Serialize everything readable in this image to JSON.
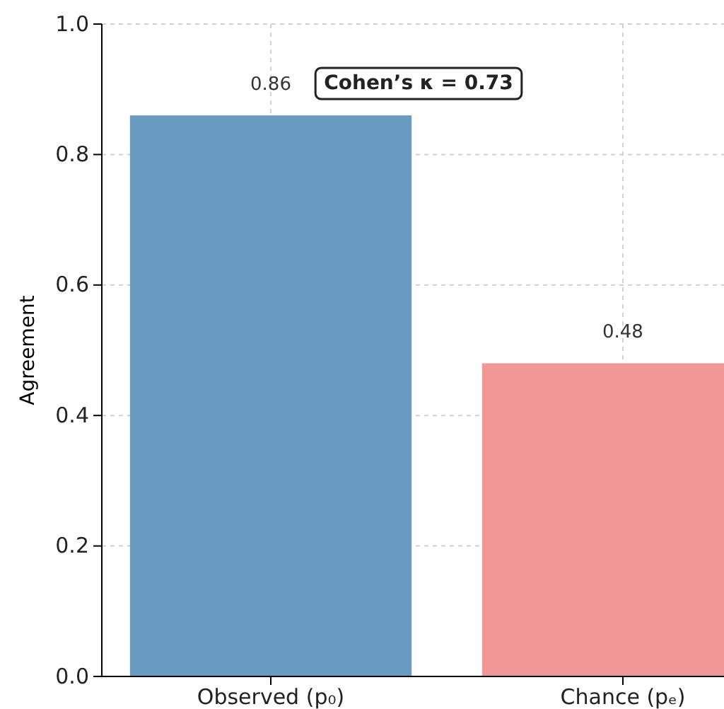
{
  "chart_data": {
    "type": "bar",
    "ylabel": "Agreement",
    "categories": [
      "Observed (p₀)",
      "Chance (pₑ)"
    ],
    "values": [
      0.86,
      0.48
    ],
    "colors": [
      "#6a9bc3",
      "#f29797"
    ],
    "ylim": [
      0,
      1
    ],
    "yticks": [
      {
        "value": 0,
        "label": "0.0"
      },
      {
        "value": 0.2,
        "label": "0.2"
      },
      {
        "value": 0.4,
        "label": "0.4"
      },
      {
        "value": 0.6,
        "label": "0.6"
      },
      {
        "value": 0.8,
        "label": "0.8"
      },
      {
        "value": 1,
        "label": "1.0"
      }
    ],
    "grid": true,
    "data_labels": true,
    "annotations": [
      "Cohen’s κ = 0.73"
    ]
  }
}
